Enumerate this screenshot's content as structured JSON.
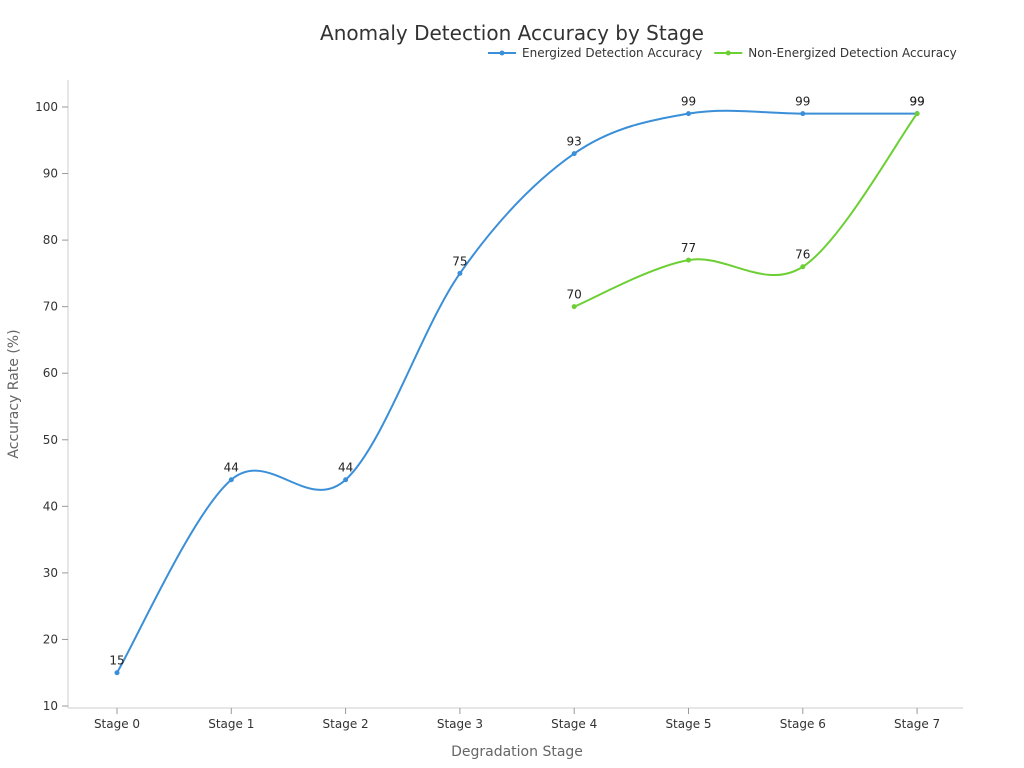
{
  "chart_data": {
    "type": "line",
    "title": "Anomaly Detection Accuracy by Stage",
    "xlabel": "Degradation Stage",
    "ylabel": "Accuracy Rate (%)",
    "categories": [
      "Stage 0",
      "Stage 1",
      "Stage 2",
      "Stage 3",
      "Stage 4",
      "Stage 5",
      "Stage 6",
      "Stage 7"
    ],
    "ylim": [
      10,
      100
    ],
    "yticks": [
      10,
      20,
      30,
      40,
      50,
      60,
      70,
      80,
      90,
      100
    ],
    "grid": false,
    "legend_position": "top-right",
    "smooth": true,
    "series": [
      {
        "name": "Energized Detection Accuracy",
        "color": "#3a8fd8",
        "values": [
          15,
          44,
          44,
          75,
          93,
          99,
          99,
          99
        ]
      },
      {
        "name": "Non-Energized Detection Accuracy",
        "color": "#6ccf34",
        "values": [
          null,
          null,
          null,
          null,
          70,
          77,
          76,
          99
        ]
      }
    ]
  }
}
